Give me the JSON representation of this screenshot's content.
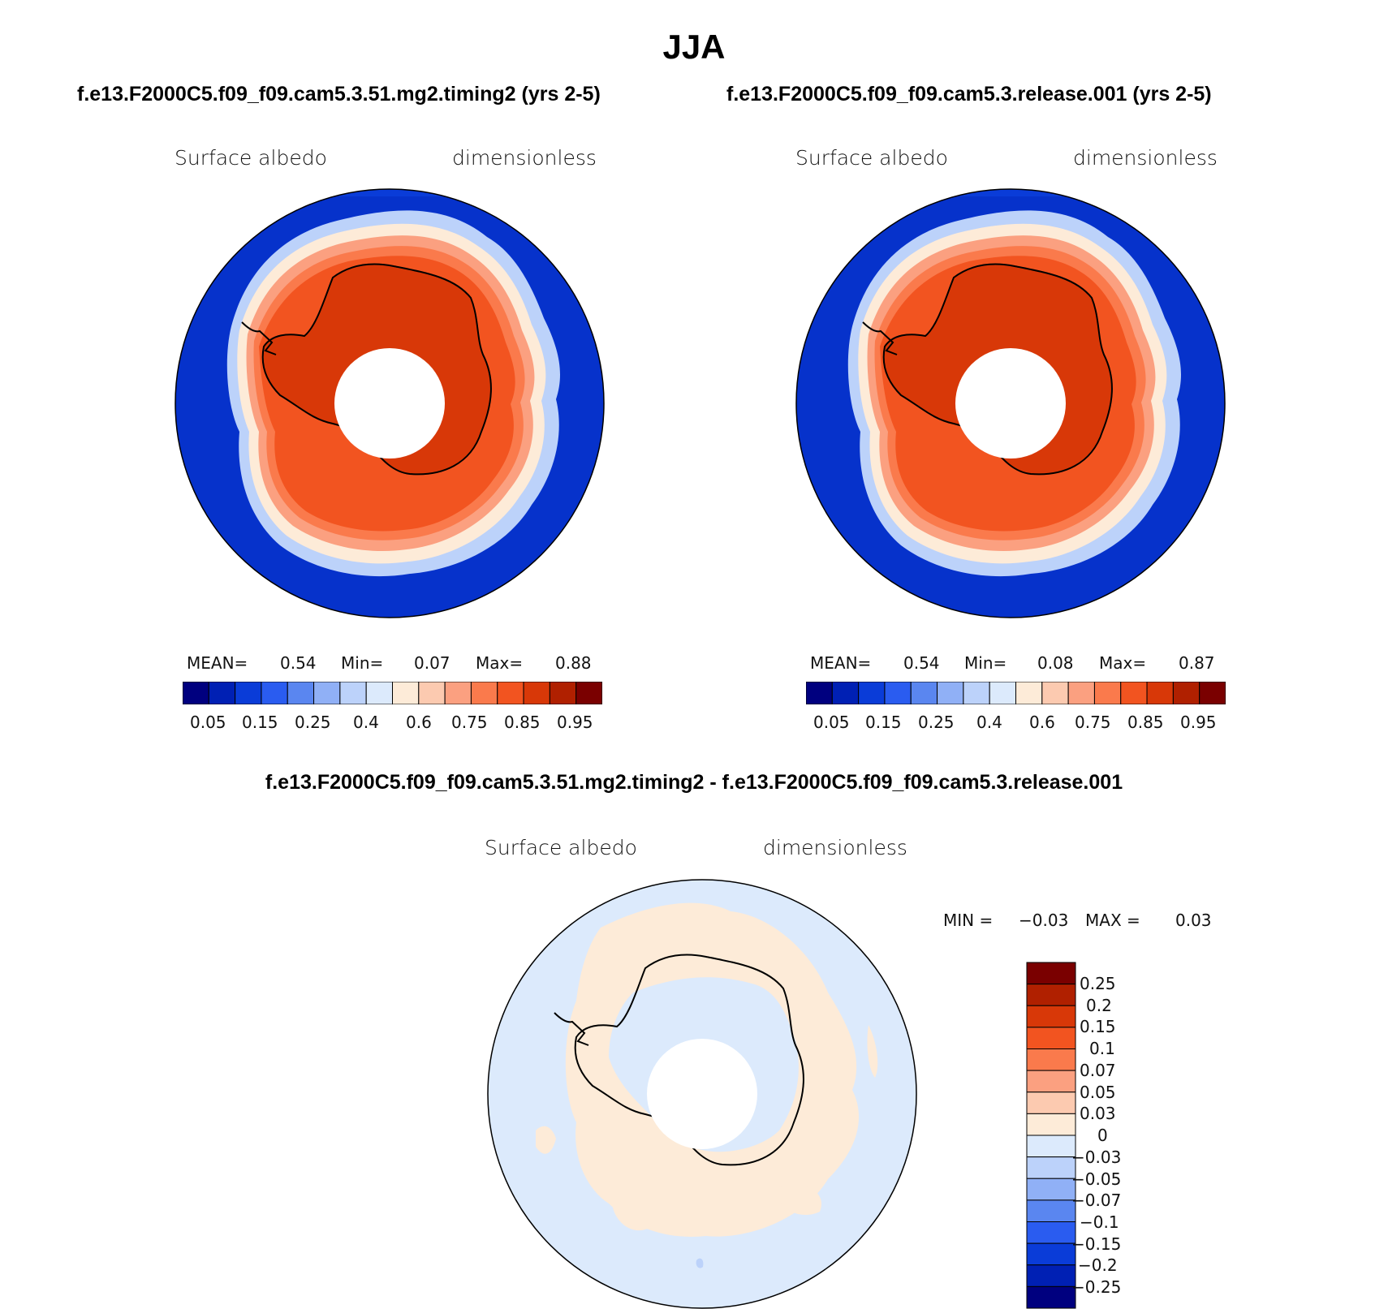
{
  "title": "JJA",
  "panels": [
    {
      "case": "f.e13.F2000C5.f09_f09.cam5.3.51.mg2.timing2 (yrs 2-5)",
      "variable": "Surface albedo",
      "units": "dimensionless",
      "mean_label": "MEAN=",
      "mean": "0.54",
      "min_label": "Min=",
      "min": "0.07",
      "max_label": "Max=",
      "max": "0.88"
    },
    {
      "case": "f.e13.F2000C5.f09_f09.cam5.3.release.001 (yrs 2-5)",
      "variable": "Surface albedo",
      "units": "dimensionless",
      "mean_label": "MEAN=",
      "mean": "0.54",
      "min_label": "Min=",
      "min": "0.08",
      "max_label": "Max=",
      "max": "0.87"
    }
  ],
  "diff": {
    "title": "f.e13.F2000C5.f09_f09.cam5.3.51.mg2.timing2 - f.e13.F2000C5.f09_f09.cam5.3.release.001",
    "variable": "Surface albedo",
    "units": "dimensionless",
    "min_label": "MIN =",
    "min": "−0.03",
    "max_label": "MAX =",
    "max": "0.03",
    "colorbar_labels": [
      "0.25",
      "0.2",
      "0.15",
      "0.1",
      "0.07",
      "0.05",
      "0.03",
      "0",
      "−0.03",
      "−0.05",
      "−0.07",
      "−0.1",
      "−0.15",
      "−0.2",
      "−0.25"
    ]
  },
  "colorbar_abs": {
    "labels": [
      "0.05",
      "0.15",
      "0.25",
      "0.4",
      "0.6",
      "0.75",
      "0.85",
      "0.95"
    ],
    "colors": [
      "#00007f",
      "#0020b4",
      "#0a3cd8",
      "#2a5cf0",
      "#5a86f0",
      "#90b0f6",
      "#bcd2fa",
      "#dceafc",
      "#fdebd8",
      "#fccab0",
      "#fba080",
      "#fa7a4c",
      "#f25420",
      "#d83808",
      "#b02000",
      "#7a0000"
    ]
  },
  "colorbar_diff_colors": [
    "#7a0000",
    "#b02000",
    "#d83808",
    "#f25420",
    "#fa7a4c",
    "#fba080",
    "#fccab0",
    "#fdebd8",
    "#dceafc",
    "#bcd2fa",
    "#90b0f6",
    "#5a86f0",
    "#2a5cf0",
    "#0a3cd8",
    "#0020b4",
    "#00007f"
  ],
  "map_colors": {
    "ocean_low": "#0a3cd8",
    "ice_orange": "#f25420",
    "land_dark": "#d83808",
    "diff_blue": "#dceafc",
    "diff_peach": "#fdebd8"
  }
}
